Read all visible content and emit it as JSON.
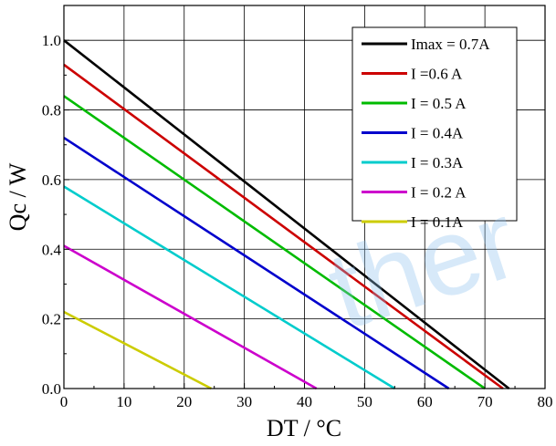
{
  "chart_data": {
    "type": "line",
    "xlabel": "DT / °C",
    "ylabel": "Qc / W",
    "xlim": [
      0,
      80
    ],
    "ylim": [
      0,
      1.1
    ],
    "x_ticks": [
      0,
      10,
      20,
      30,
      40,
      50,
      60,
      70,
      80
    ],
    "y_ticks": [
      0.0,
      0.2,
      0.4,
      0.6,
      0.8,
      1.0
    ],
    "x_tick_labels": [
      "0",
      "10",
      "20",
      "30",
      "40",
      "50",
      "60",
      "70",
      "80"
    ],
    "y_tick_labels": [
      "0.0",
      "0.2",
      "0.4",
      "0.6",
      "0.8",
      "1.0"
    ],
    "grid": true,
    "legend_position": "top-right",
    "series": [
      {
        "name": "Imax = 0.7A",
        "color": "#000000",
        "x": [
          0,
          74
        ],
        "y": [
          1.0,
          0.0
        ]
      },
      {
        "name": "I =0.6 A",
        "color": "#cc0000",
        "x": [
          0,
          73
        ],
        "y": [
          0.93,
          0.0
        ]
      },
      {
        "name": "I = 0.5 A",
        "color": "#00bb00",
        "x": [
          0,
          70
        ],
        "y": [
          0.84,
          0.0
        ]
      },
      {
        "name": "I = 0.4A",
        "color": "#0000cc",
        "x": [
          0,
          64
        ],
        "y": [
          0.72,
          0.0
        ]
      },
      {
        "name": "I = 0.3A",
        "color": "#00cccc",
        "x": [
          0,
          55
        ],
        "y": [
          0.58,
          0.0
        ]
      },
      {
        "name": "I = 0.2 A",
        "color": "#cc00cc",
        "x": [
          0,
          42
        ],
        "y": [
          0.41,
          0.0
        ]
      },
      {
        "name": "I = 0.1A",
        "color": "#cccc00",
        "x": [
          0,
          24.5
        ],
        "y": [
          0.22,
          0.0
        ]
      }
    ]
  },
  "watermark": {
    "left_text": "",
    "right_text": "ther"
  }
}
